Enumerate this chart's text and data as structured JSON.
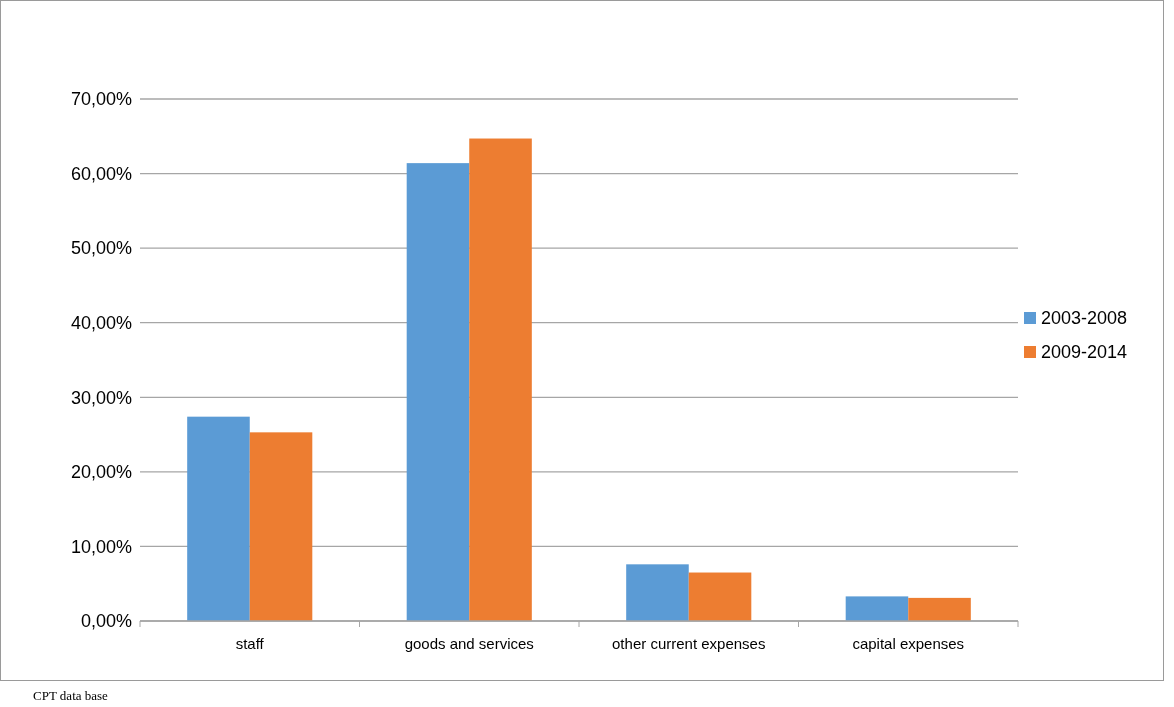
{
  "chart_data": {
    "type": "bar",
    "categories": [
      "staff",
      "goods and services",
      "other current expenses",
      "capital expenses"
    ],
    "series": [
      {
        "name": "2003-2008",
        "color": "#5b9bd5",
        "values": [
          27.4,
          61.4,
          7.6,
          3.3
        ]
      },
      {
        "name": "2009-2014",
        "color": "#ed7d31",
        "values": [
          25.3,
          64.7,
          6.5,
          3.1
        ]
      }
    ],
    "ylim": [
      0,
      70
    ],
    "yticks": [
      {
        "value": 0,
        "label": "0,00%"
      },
      {
        "value": 10,
        "label": "10,00%"
      },
      {
        "value": 20,
        "label": "20,00%"
      },
      {
        "value": 30,
        "label": "30,00%"
      },
      {
        "value": 40,
        "label": "40,00%"
      },
      {
        "value": 50,
        "label": "50,00%"
      },
      {
        "value": 60,
        "label": "60,00%"
      },
      {
        "value": 70,
        "label": "70,00%"
      }
    ],
    "grid": "y",
    "legend": "right",
    "annotations": [
      "CPT data base"
    ]
  }
}
